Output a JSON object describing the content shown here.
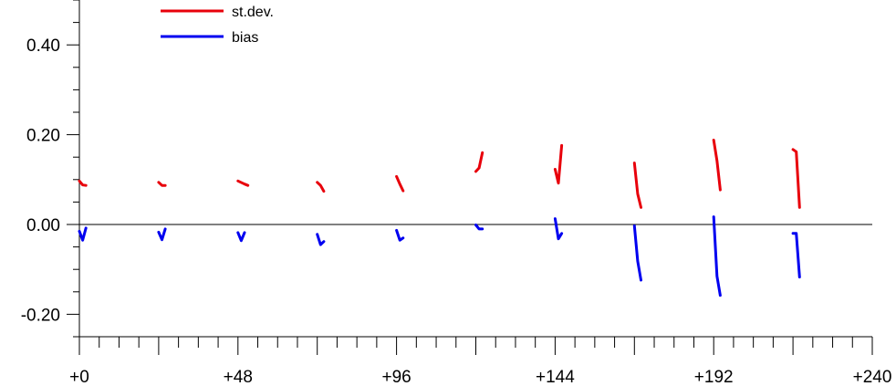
{
  "chart_data": {
    "type": "line",
    "title": "",
    "xlabel": "",
    "ylabel": "",
    "xlim": [
      0,
      240
    ],
    "ylim": [
      -0.25,
      0.5
    ],
    "x_ticks": [
      0,
      48,
      96,
      144,
      192,
      240
    ],
    "x_tick_labels": [
      "+0",
      "+48",
      "+96",
      "+144",
      "+192",
      "+240"
    ],
    "x_minor_step": 6,
    "y_ticks": [
      -0.2,
      0.0,
      0.2,
      0.4
    ],
    "y_tick_labels": [
      "-0.20",
      "0.00",
      "0.20",
      "0.40"
    ],
    "y_minor_step": 0.05,
    "zero_line": true,
    "grid": false,
    "legend_position": "top-left",
    "series": [
      {
        "name": "st.dev.",
        "color": "#e8000b",
        "segments": [
          [
            [
              0,
              0.097
            ],
            [
              1,
              0.088
            ],
            [
              2,
              0.087
            ]
          ],
          [
            [
              24,
              0.094
            ],
            [
              25,
              0.087
            ],
            [
              26,
              0.087
            ]
          ],
          [
            [
              48,
              0.097
            ],
            [
              50,
              0.09
            ],
            [
              51,
              0.087
            ]
          ],
          [
            [
              72,
              0.094
            ],
            [
              73,
              0.087
            ],
            [
              74,
              0.074
            ]
          ],
          [
            [
              96,
              0.107
            ],
            [
              97,
              0.09
            ],
            [
              98,
              0.075
            ]
          ],
          [
            [
              120,
              0.118
            ],
            [
              121,
              0.126
            ],
            [
              122,
              0.16
            ]
          ],
          [
            [
              144,
              0.123
            ],
            [
              145,
              0.092
            ],
            [
              146,
              0.176
            ]
          ],
          [
            [
              168,
              0.137
            ],
            [
              169,
              0.068
            ],
            [
              170,
              0.038
            ]
          ],
          [
            [
              192,
              0.188
            ],
            [
              193,
              0.142
            ],
            [
              194,
              0.077
            ]
          ],
          [
            [
              216,
              0.167
            ],
            [
              217,
              0.162
            ],
            [
              218,
              0.038
            ]
          ]
        ]
      },
      {
        "name": "bias",
        "color": "#0000f0",
        "segments": [
          [
            [
              0,
              -0.015
            ],
            [
              1,
              -0.035
            ],
            [
              2,
              -0.008
            ]
          ],
          [
            [
              24,
              -0.017
            ],
            [
              25,
              -0.034
            ],
            [
              26,
              -0.01
            ]
          ],
          [
            [
              48,
              -0.018
            ],
            [
              49,
              -0.036
            ],
            [
              50,
              -0.018
            ]
          ],
          [
            [
              72,
              -0.022
            ],
            [
              73,
              -0.045
            ],
            [
              74,
              -0.038
            ]
          ],
          [
            [
              96,
              -0.013
            ],
            [
              97,
              -0.035
            ],
            [
              98,
              -0.03
            ]
          ],
          [
            [
              120,
              -0.001
            ],
            [
              121,
              -0.01
            ],
            [
              122,
              -0.01
            ]
          ],
          [
            [
              144,
              0.013
            ],
            [
              145,
              -0.032
            ],
            [
              146,
              -0.02
            ]
          ],
          [
            [
              168,
              -0.003
            ],
            [
              169,
              -0.082
            ],
            [
              170,
              -0.124
            ]
          ],
          [
            [
              192,
              0.017
            ],
            [
              193,
              -0.115
            ],
            [
              194,
              -0.158
            ]
          ],
          [
            [
              216,
              -0.02
            ],
            [
              217,
              -0.02
            ],
            [
              218,
              -0.117
            ]
          ]
        ]
      }
    ]
  }
}
